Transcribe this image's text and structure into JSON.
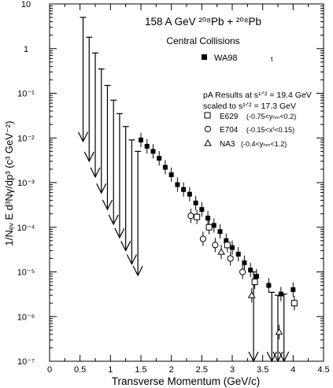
{
  "chart_data": {
    "type": "scatter",
    "title": "158 A GeV ²⁰⁸Pb + ²⁰⁸Pb",
    "subtitle": "Central Collisions",
    "xlabel": "Transverse Momentum (GeV/c)",
    "ylabel": "1/Nₑᵥ E d³Nγ/dp³ (c³ GeV⁻²)",
    "xlim": [
      0,
      4.5
    ],
    "ylim": [
      1e-07,
      10
    ],
    "yscale": "log",
    "x_ticks": [
      "0",
      "0.5",
      "1",
      "1.5",
      "2",
      "2.5",
      "3",
      "3.5",
      "4",
      "4.5"
    ],
    "y_ticks": [
      "10",
      "1",
      "10⁻¹",
      "10⁻²",
      "10⁻³",
      "10⁻⁴",
      "10⁻⁵",
      "10⁻⁶",
      "10⁻⁷"
    ],
    "legend_note": "pA Results at s¹ᐟ² = 19.4 GeV",
    "legend_note2": "scaled to  s¹ᐟ² = 17.3 GeV",
    "series": [
      {
        "name": "WA98",
        "name_suffix": "t",
        "marker": "filled-square",
        "x": [
          1.5,
          1.6,
          1.7,
          1.8,
          1.9,
          2.0,
          2.1,
          2.2,
          2.3,
          2.4,
          2.5,
          2.6,
          2.7,
          2.8,
          2.9,
          3.0,
          3.1,
          3.2,
          3.3,
          3.4,
          3.6,
          3.8,
          4.0
        ],
        "y": [
          0.009,
          0.0065,
          0.005,
          0.0035,
          0.0022,
          0.0015,
          0.0009,
          0.0007,
          0.00055,
          0.00035,
          0.00025,
          0.00016,
          0.00011,
          8e-05,
          5e-05,
          3.5e-05,
          2.5e-05,
          1.6e-05,
          1.1e-05,
          8e-06,
          5e-06,
          3.2e-06,
          4e-06
        ]
      },
      {
        "name": "E629",
        "range": "(-0.75<yₕₘ<0.2)",
        "marker": "open-square",
        "x": [
          2.42,
          2.62,
          2.92,
          3.37,
          4.02
        ],
        "y": [
          0.00017,
          0.0001,
          4e-05,
          6e-06,
          2e-06
        ]
      },
      {
        "name": "E704",
        "range": "(-0.15<xᶠ<0.15)",
        "marker": "open-circle",
        "x": [
          2.32,
          2.52,
          2.72,
          2.97,
          3.17
        ],
        "y": [
          0.00018,
          5.5e-05,
          4e-05,
          2e-05,
          1e-05
        ]
      },
      {
        "name": "NA3",
        "range": "(-0.4<yₕₘ<1.2)",
        "marker": "open-triangle",
        "x": [
          2.82,
          3.32,
          3.77
        ],
        "y": [
          2.8e-05,
          3e-06,
          4.5e-07
        ]
      }
    ],
    "upper_limits": {
      "x": [
        0.55,
        0.65,
        0.75,
        0.85,
        0.95,
        1.05,
        1.15,
        1.25,
        1.35,
        1.45,
        3.35,
        3.65,
        3.75,
        3.85
      ],
      "y": [
        5.0,
        1.8,
        0.8,
        0.35,
        0.15,
        0.07,
        0.035,
        0.018,
        0.009,
        0.005,
        1e-05,
        3.5e-06,
        3e-06,
        3.2e-06
      ]
    }
  }
}
